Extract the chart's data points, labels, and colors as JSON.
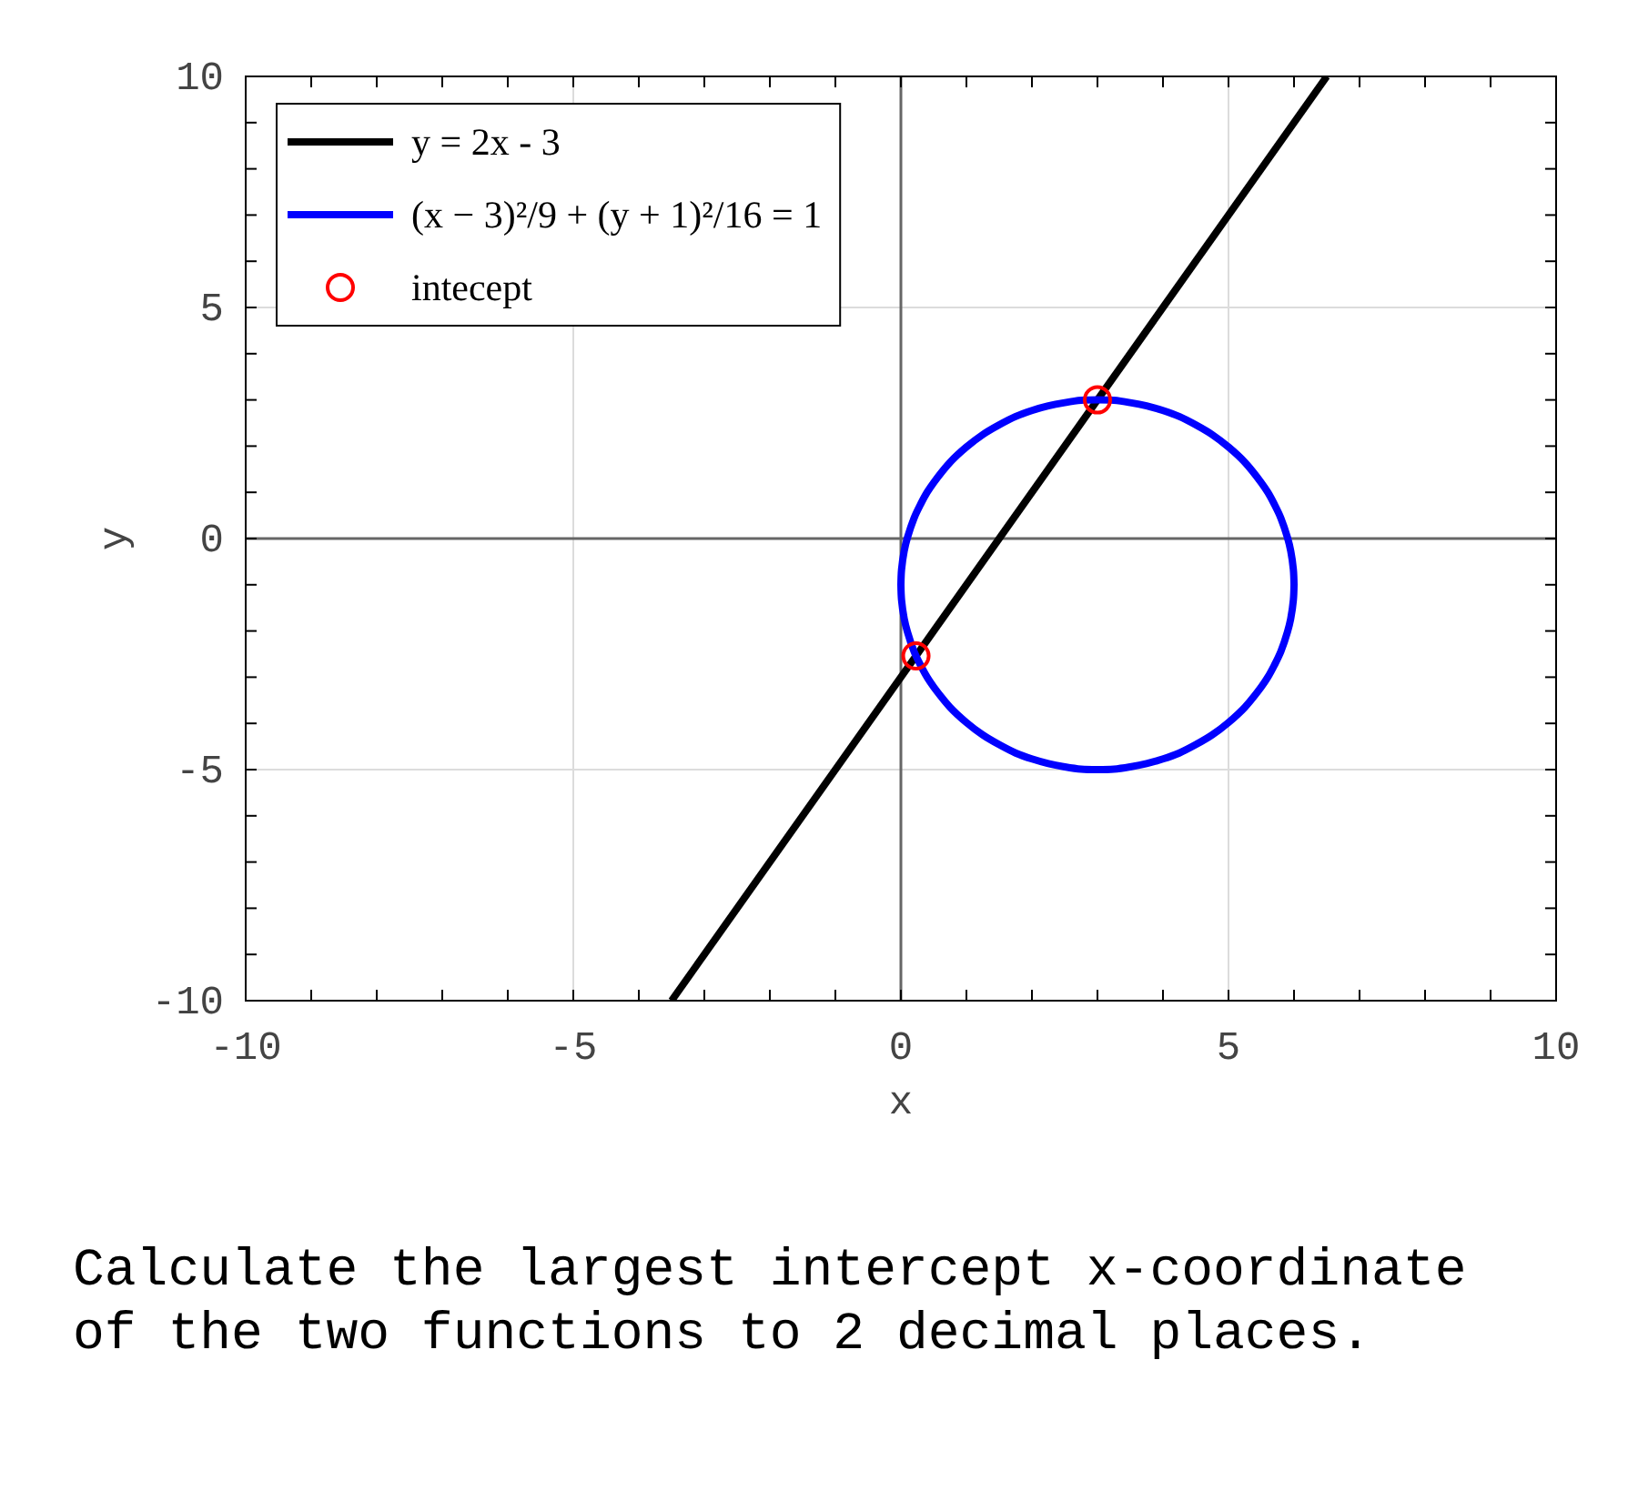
{
  "chart_data": {
    "type": "line",
    "xlabel": "x",
    "ylabel": "y",
    "xlim": [
      -10,
      10
    ],
    "ylim": [
      -10,
      10
    ],
    "xticks": [
      -10,
      {
        "value": -9,
        "label": null
      },
      {
        "value": -8,
        "label": null
      },
      {
        "value": -7,
        "label": null
      },
      {
        "value": -6,
        "label": null
      },
      -5,
      {
        "value": -4,
        "label": null
      },
      {
        "value": -3,
        "label": null
      },
      {
        "value": -2,
        "label": null
      },
      {
        "value": -1,
        "label": null
      },
      0,
      {
        "value": 1,
        "label": null
      },
      {
        "value": 2,
        "label": null
      },
      {
        "value": 3,
        "label": null
      },
      {
        "value": 4,
        "label": null
      },
      5,
      {
        "value": 6,
        "label": null
      },
      {
        "value": 7,
        "label": null
      },
      {
        "value": 8,
        "label": null
      },
      {
        "value": 9,
        "label": null
      },
      10
    ],
    "yticks": [
      -10,
      {
        "value": -9,
        "label": null
      },
      {
        "value": -8,
        "label": null
      },
      {
        "value": -7,
        "label": null
      },
      {
        "value": -6,
        "label": null
      },
      -5,
      {
        "value": -4,
        "label": null
      },
      {
        "value": -3,
        "label": null
      },
      {
        "value": -2,
        "label": null
      },
      {
        "value": -1,
        "label": null
      },
      0,
      {
        "value": 1,
        "label": null
      },
      {
        "value": 2,
        "label": null
      },
      {
        "value": 3,
        "label": null
      },
      {
        "value": 4,
        "label": null
      },
      5,
      {
        "value": 6,
        "label": null
      },
      {
        "value": 7,
        "label": null
      },
      {
        "value": 8,
        "label": null
      },
      {
        "value": 9,
        "label": null
      },
      10
    ],
    "grid": true,
    "legend": "top left",
    "series": [
      {
        "name": "y = 2x - 3",
        "color": "#000000",
        "x": [
          -3.5,
          6.5
        ],
        "values": [
          -10,
          10
        ]
      },
      {
        "name": "(x − 3)²/9 + (y + 1)²/16 = 1",
        "color": "#0000ff",
        "x": [
          0,
          0.01,
          0.05,
          0.1,
          0.2,
          0.3,
          0.4,
          0.5,
          0.75,
          1,
          1.25,
          1.5,
          1.75,
          2,
          2.25,
          2.5,
          2.75,
          3,
          3.25,
          3.5,
          3.75,
          4,
          4.25,
          4.5,
          4.75,
          5,
          5.25,
          5.5,
          5.6,
          5.7,
          5.8,
          5.9,
          5.95,
          5.99,
          6,
          null,
          0,
          0.01,
          0.05,
          0.1,
          0.2,
          0.3,
          0.4,
          0.5,
          0.75,
          1,
          1.25,
          1.5,
          1.75,
          2,
          2.25,
          2.5,
          2.75,
          3,
          3.25,
          3.5,
          3.75,
          4,
          4.25,
          4.5,
          4.75,
          5,
          5.25,
          5.5,
          5.6,
          5.7,
          5.8,
          5.9,
          5.95,
          5.99,
          6
        ],
        "values": [
          -1,
          -0.67,
          -0.27,
          0.02,
          0.44,
          0.74,
          1,
          1.21,
          1.65,
          1.98,
          2.25,
          2.46,
          2.64,
          2.77,
          2.87,
          2.94,
          2.99,
          3,
          2.99,
          2.94,
          2.87,
          2.77,
          2.64,
          2.46,
          2.25,
          1.98,
          1.65,
          1.21,
          1,
          0.74,
          0.44,
          0.02,
          -0.27,
          -0.67,
          -1,
          null,
          -1,
          -1.33,
          -1.73,
          -2.02,
          -2.44,
          -2.74,
          -3,
          -3.21,
          -3.65,
          -3.98,
          -4.25,
          -4.46,
          -4.64,
          -4.77,
          -4.87,
          -4.94,
          -4.99,
          -5,
          -4.99,
          -4.94,
          -4.87,
          -4.77,
          -4.64,
          -4.46,
          -4.25,
          -3.98,
          -3.65,
          -3.21,
          -3,
          -2.74,
          -2.44,
          -2.02,
          -1.73,
          -1.33,
          -1
        ]
      },
      {
        "name": "intecept",
        "type": "scatter",
        "color": "#ff0000",
        "marker": "circle",
        "x": [
          0.23,
          3
        ],
        "values": [
          -2.54,
          3
        ]
      }
    ],
    "annotations": [
      "Calculate the largest intercept x-coordinate\nof the two functions to 2 decimal places."
    ]
  }
}
